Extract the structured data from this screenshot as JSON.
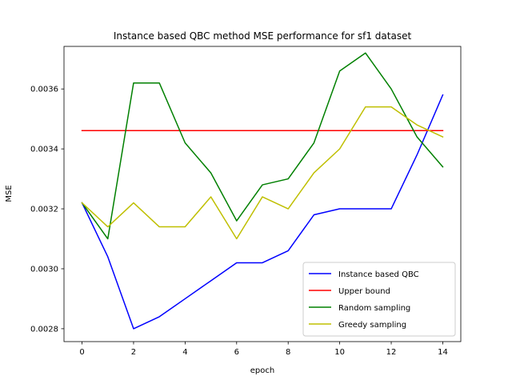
{
  "chart_data": {
    "type": "line",
    "title": "Instance based QBC method MSE performance for sf1 dataset",
    "xlabel": "epoch",
    "ylabel": "MSE",
    "x": [
      0,
      1,
      2,
      3,
      4,
      5,
      6,
      7,
      8,
      9,
      10,
      11,
      12,
      13,
      14
    ],
    "xlim": [
      -0.7,
      14.7
    ],
    "ylim": [
      0.002757,
      0.003742
    ],
    "xticks": [
      0,
      2,
      4,
      6,
      8,
      10,
      12,
      14
    ],
    "yticks": [
      0.0028,
      0.003,
      0.0032,
      0.0034,
      0.0036
    ],
    "ytick_labels": [
      "0.0028",
      "0.0030",
      "0.0032",
      "0.0034",
      "0.0036"
    ],
    "grid": false,
    "legend_position": "lower-right",
    "series": [
      {
        "name": "Instance based QBC",
        "color": "#0000ff",
        "values": [
          0.00322,
          0.00304,
          0.0028,
          0.00284,
          0.0029,
          0.00296,
          0.00302,
          0.00302,
          0.00306,
          0.00318,
          0.0032,
          0.0032,
          0.0032,
          0.00338,
          0.00358
        ]
      },
      {
        "name": "Upper bound",
        "color": "#ff0000",
        "values": [
          0.003461,
          0.003461,
          0.003461,
          0.003461,
          0.003461,
          0.003461,
          0.003461,
          0.003461,
          0.003461,
          0.003461,
          0.003461,
          0.003461,
          0.003461,
          0.003461,
          0.003461
        ]
      },
      {
        "name": "Random sampling",
        "color": "#008000",
        "values": [
          0.00322,
          0.0031,
          0.00362,
          0.00362,
          0.00342,
          0.00332,
          0.00316,
          0.00328,
          0.0033,
          0.00342,
          0.00366,
          0.00372,
          0.0036,
          0.00344,
          0.00334
        ]
      },
      {
        "name": "Greedy sampling",
        "color": "#bfbf00",
        "values": [
          0.00322,
          0.00314,
          0.00322,
          0.00314,
          0.00314,
          0.00324,
          0.0031,
          0.00324,
          0.0032,
          0.00332,
          0.0034,
          0.00354,
          0.00354,
          0.00348,
          0.00344
        ]
      }
    ]
  }
}
